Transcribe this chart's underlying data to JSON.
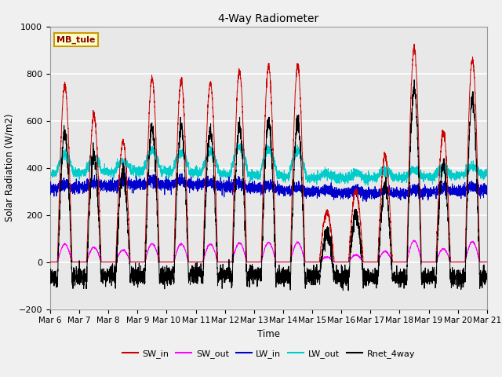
{
  "title": "4-Way Radiometer",
  "ylabel": "Solar Radiation (W/m2)",
  "xlabel": "Time",
  "ylim": [
    -200,
    1000
  ],
  "annotation": "MB_tule",
  "x_tick_labels": [
    "Mar 6",
    "Mar 7",
    "Mar 8",
    "Mar 9",
    "Mar 10",
    "Mar 11",
    "Mar 12",
    "Mar 13",
    "Mar 14",
    "Mar 15",
    "Mar 16",
    "Mar 17",
    "Mar 18",
    "Mar 19",
    "Mar 20",
    "Mar 21"
  ],
  "legend_entries": [
    "SW_in",
    "SW_out",
    "LW_in",
    "LW_out",
    "Rnet_4way"
  ],
  "legend_colors": [
    "#cc0000",
    "#ff00ff",
    "#0000cc",
    "#00cccc",
    "#000000"
  ],
  "bg_color": "#e8e8e8",
  "n_days": 15,
  "seed": 42,
  "day_peaks_sw": [
    750,
    620,
    510,
    780,
    770,
    760,
    810,
    830,
    830,
    210,
    300,
    450,
    910,
    550,
    860
  ],
  "sw_out_scale": 0.1,
  "lw_in_base": 310,
  "lw_out_base": 370,
  "figsize": [
    6.4,
    4.8
  ],
  "dpi": 100
}
